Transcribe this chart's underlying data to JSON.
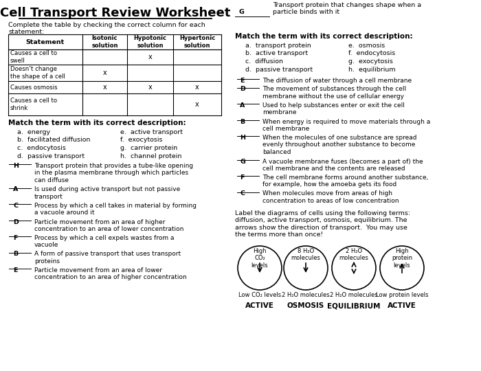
{
  "title": "Cell Transport Review Worksheet",
  "bg_color": "#ffffff",
  "table_instruction": "Complete the table by checking the correct column for each\nstatement:",
  "table_headers": [
    "Statement",
    "Isotonic\nsolution",
    "Hypotonic\nsolution",
    "Hypertonic\nsolution"
  ],
  "table_rows": [
    [
      "Causes a cell to\nswell",
      "",
      "x",
      ""
    ],
    [
      "Doesn’t change\nthe shape of a cell",
      "x",
      "",
      ""
    ],
    [
      "Causes osmosis",
      "x",
      "x",
      "x"
    ],
    [
      "Causes a cell to\nshrink",
      "",
      "",
      "x"
    ]
  ],
  "left_match_title": "Match the term with its correct description:",
  "left_match_terms": [
    [
      "a.  energy",
      "e.  active transport"
    ],
    [
      "b.  facilitated diffusion",
      "f.  exocytosis"
    ],
    [
      "c.  endocytosis",
      "g.  carrier protein"
    ],
    [
      "d.  passive transport",
      "h.  channel protein"
    ]
  ],
  "left_match_answers": [
    [
      "H",
      "Transport protein that provides a tube-like opening\nin the plasma membrane through which particles\ncan diffuse"
    ],
    [
      "A",
      "Is used during active transport but not passive\ntransport"
    ],
    [
      "C",
      "Process by which a cell takes in material by forming\na vacuole around it"
    ],
    [
      "D",
      "Particle movement from an area of higher\nconcentration to an area of lower concentration"
    ],
    [
      "F",
      "Process by which a cell expels wastes from a\nvacuole"
    ],
    [
      "B",
      "A form of passive transport that uses transport\nproteins"
    ],
    [
      "E",
      "Particle movement from an area of lower\nconcentration to an area of higher concentration"
    ]
  ],
  "right_top_answer": [
    "G",
    "Transport protein that changes shape when a\nparticle binds with it"
  ],
  "right_match_title": "Match the term with its correct description:",
  "right_match_terms": [
    [
      "a.  transport protein",
      "e.  osmosis"
    ],
    [
      "b.  active transport",
      "f.  endocytosis"
    ],
    [
      "c.  diffusion",
      "g.  exocytosis"
    ],
    [
      "d.  passive transport",
      "h.  equilibrium"
    ]
  ],
  "right_match_answers": [
    [
      "E",
      "The diffusion of water through a cell membrane"
    ],
    [
      "D",
      "The movement of substances through the cell\nmembrane without the use of cellular energy"
    ],
    [
      "A",
      "Used to help substances enter or exit the cell\nmembrane"
    ],
    [
      "B",
      "When energy is required to move materials through a\ncell membrane"
    ],
    [
      "H",
      "When the molecules of one substance are spread\nevenly throughout another substance to become\nbalanced"
    ],
    [
      "G",
      "A vacuole membrane fuses (becomes a part of) the\ncell membrane and the contents are released"
    ],
    [
      "F",
      "The cell membrane forms around another substance,\nfor example, how the amoeba gets its food"
    ],
    [
      "C",
      "When molecules move from areas of high\nconcentration to areas of low concentration"
    ]
  ],
  "diagram_title": "Label the diagrams of cells using the following terms:\ndiffusion, active transport, osmosis, equilibrium. The\narrows show the direction of transport.  You may use\nthe terms more than once!",
  "diagram_cells": [
    {
      "top_label": "High\nCO₂\nlevels",
      "bottom_label": "Low CO₂ levels",
      "arrow": "down",
      "answer": "ACTIVE"
    },
    {
      "top_label": "8 H₂O\nmolecules",
      "bottom_label": "2 H₂O molecules",
      "arrow": "down",
      "answer": "OSMOSIS"
    },
    {
      "top_label": "2 H₂O\nmolecules",
      "bottom_label": "2 H₂O molecules",
      "arrow": "both",
      "answer": "EQUILIBRIUM"
    },
    {
      "top_label": "High\nprotein\nlevels",
      "bottom_label": "Low protein levels",
      "arrow": "up",
      "answer": "ACTIVE"
    }
  ]
}
